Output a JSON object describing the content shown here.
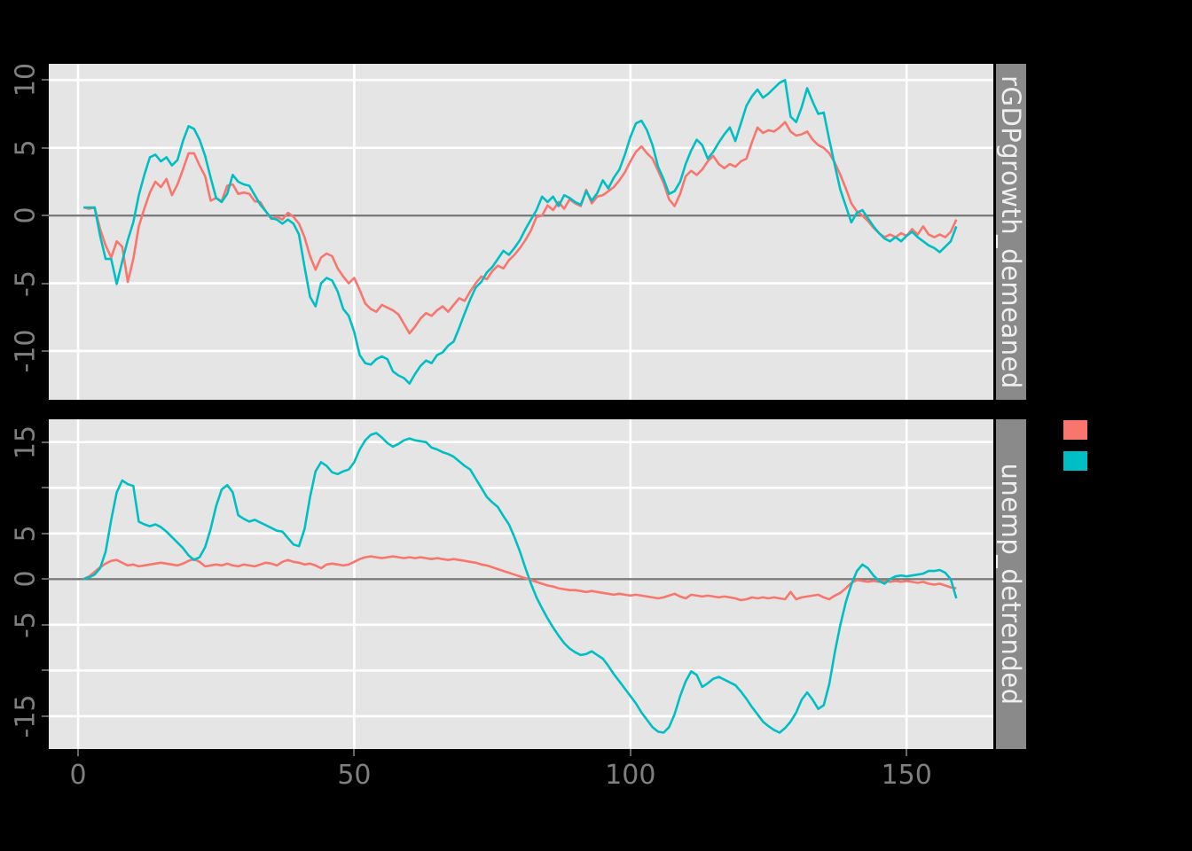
{
  "chart_data": {
    "type": "line",
    "title": "",
    "xlabel": "",
    "ylabel": "",
    "grid": true,
    "legend_position": "right",
    "x": {
      "start": 1,
      "step": 1,
      "count": 159,
      "lim": [
        -5.3,
        165.7
      ],
      "breaks": [
        0,
        50,
        100,
        150
      ],
      "labels": [
        "0",
        "50",
        "100",
        "150"
      ]
    },
    "facets": [
      {
        "strip_label": "rGDPgrowth_demeaned",
        "ylim": [
          -13.6,
          11.2
        ],
        "zero_line": true,
        "y_breaks": [
          {
            "value": 10,
            "label": "10"
          },
          {
            "value": 5,
            "label": "5"
          },
          {
            "value": 0,
            "label": "0"
          },
          {
            "value": -5,
            "label": "-5"
          },
          {
            "value": -10,
            "label": "-10"
          }
        ],
        "series": [
          {
            "name": "series-1-salmon",
            "color": "#F8766D",
            "values": [
              0.6,
              0.5,
              0.6,
              -1.0,
              -2.2,
              -3.1,
              -1.9,
              -2.3,
              -4.9,
              -3.2,
              -0.8,
              0.5,
              1.7,
              2.5,
              2.1,
              2.7,
              1.5,
              2.3,
              3.4,
              4.6,
              4.6,
              3.7,
              2.9,
              1.1,
              1.3,
              1.05,
              2.2,
              2.3,
              1.6,
              1.7,
              1.6,
              1.05,
              1.0,
              0.3,
              -0.25,
              -0.1,
              -0.3,
              0.2,
              -0.1,
              -0.6,
              -1.6,
              -3.0,
              -4.0,
              -3.1,
              -2.8,
              -3.0,
              -3.9,
              -4.5,
              -5.0,
              -4.6,
              -5.5,
              -6.5,
              -6.9,
              -7.1,
              -6.6,
              -6.8,
              -7.0,
              -7.3,
              -8.0,
              -8.7,
              -8.2,
              -7.6,
              -7.2,
              -7.4,
              -7.0,
              -6.7,
              -7.1,
              -6.6,
              -6.1,
              -6.3,
              -5.6,
              -5.0,
              -4.5,
              -4.7,
              -4.1,
              -3.7,
              -3.9,
              -3.3,
              -2.9,
              -2.4,
              -1.8,
              -1.1,
              -0.1,
              0.0,
              0.75,
              0.4,
              1.0,
              0.5,
              1.2,
              0.9,
              0.7,
              1.9,
              0.9,
              1.4,
              1.5,
              1.8,
              2.1,
              2.6,
              3.2,
              4.0,
              4.7,
              5.1,
              4.6,
              4.2,
              3.3,
              2.4,
              1.2,
              0.7,
              1.6,
              2.9,
              3.3,
              3.0,
              3.4,
              4.0,
              4.4,
              3.8,
              3.5,
              3.8,
              3.6,
              4.0,
              4.2,
              5.4,
              6.5,
              6.1,
              6.3,
              6.2,
              6.5,
              6.9,
              6.2,
              5.9,
              6.0,
              6.2,
              5.6,
              5.2,
              5.0,
              4.6,
              3.9,
              3.0,
              2.0,
              0.9,
              0.3,
              0.0,
              -0.4,
              -0.9,
              -1.3,
              -1.6,
              -1.4,
              -1.6,
              -1.3,
              -1.5,
              -1.0,
              -1.4,
              -0.8,
              -1.4,
              -1.6,
              -1.4,
              -1.6,
              -1.2,
              -0.3
            ]
          },
          {
            "name": "series-2-teal",
            "color": "#00BFC4",
            "values": [
              0.6,
              0.6,
              0.6,
              -1.5,
              -3.2,
              -3.2,
              -5.05,
              -3.4,
              -1.8,
              -0.5,
              1.5,
              3.0,
              4.3,
              4.5,
              4.0,
              4.3,
              3.7,
              4.1,
              5.5,
              6.6,
              6.4,
              5.6,
              4.4,
              2.8,
              1.3,
              1.0,
              1.6,
              3.0,
              2.5,
              2.3,
              2.2,
              1.5,
              0.8,
              0.3,
              -0.2,
              -0.3,
              -0.6,
              -0.3,
              -0.6,
              -1.4,
              -3.8,
              -6.0,
              -6.7,
              -5.0,
              -4.6,
              -4.8,
              -5.6,
              -6.9,
              -7.4,
              -8.6,
              -10.3,
              -10.9,
              -11.0,
              -10.6,
              -10.4,
              -10.6,
              -11.5,
              -11.8,
              -12.0,
              -12.4,
              -11.7,
              -11.1,
              -10.7,
              -10.9,
              -10.3,
              -10.1,
              -9.6,
              -9.3,
              -8.3,
              -7.2,
              -6.2,
              -5.3,
              -4.9,
              -4.2,
              -3.8,
              -3.2,
              -2.6,
              -2.9,
              -2.4,
              -1.8,
              -1.0,
              -0.3,
              0.4,
              1.4,
              1.0,
              1.4,
              0.7,
              1.5,
              1.3,
              1.0,
              0.8,
              1.8,
              1.1,
              1.65,
              2.6,
              2.0,
              2.8,
              3.4,
              4.5,
              5.8,
              6.8,
              7.0,
              6.3,
              5.2,
              3.6,
              2.7,
              1.6,
              1.8,
              2.5,
              3.8,
              4.8,
              5.6,
              5.2,
              4.2,
              4.7,
              5.4,
              6.0,
              6.5,
              5.5,
              6.8,
              8.1,
              8.8,
              9.3,
              8.7,
              9.0,
              9.4,
              9.8,
              10.0,
              7.3,
              6.9,
              8.0,
              9.4,
              8.4,
              7.5,
              7.6,
              5.6,
              3.7,
              1.9,
              0.7,
              -0.5,
              0.2,
              0.4,
              -0.2,
              -0.8,
              -1.3,
              -1.7,
              -1.9,
              -1.6,
              -1.9,
              -1.5,
              -1.2,
              -1.6,
              -1.9,
              -2.2,
              -2.4,
              -2.7,
              -2.3,
              -1.9,
              -0.8
            ]
          }
        ]
      },
      {
        "strip_label": "unemp_detrended",
        "ylim": [
          -18.6,
          17.5
        ],
        "zero_line": true,
        "y_breaks": [
          {
            "value": 15,
            "label": "15"
          },
          {
            "value": 10,
            "label": ""
          },
          {
            "value": 5,
            "label": "5"
          },
          {
            "value": 0,
            "label": "0"
          },
          {
            "value": -5,
            "label": "-5"
          },
          {
            "value": -10,
            "label": ""
          },
          {
            "value": -15,
            "label": "-15"
          }
        ],
        "series": [
          {
            "name": "series-1-salmon",
            "color": "#F8766D",
            "values": [
              0.0,
              0.3,
              0.8,
              1.3,
              1.7,
              2.0,
              2.1,
              1.8,
              1.5,
              1.6,
              1.4,
              1.5,
              1.6,
              1.7,
              1.8,
              1.7,
              1.6,
              1.5,
              1.7,
              2.0,
              2.2,
              1.9,
              1.4,
              1.5,
              1.6,
              1.5,
              1.7,
              1.5,
              1.4,
              1.6,
              1.5,
              1.4,
              1.6,
              1.8,
              1.7,
              1.5,
              1.9,
              2.1,
              1.9,
              1.8,
              1.6,
              1.7,
              1.5,
              1.2,
              1.6,
              1.7,
              1.6,
              1.5,
              1.6,
              1.9,
              2.2,
              2.4,
              2.5,
              2.4,
              2.3,
              2.4,
              2.5,
              2.4,
              2.3,
              2.4,
              2.3,
              2.4,
              2.3,
              2.2,
              2.3,
              2.2,
              2.1,
              2.2,
              2.1,
              2.0,
              1.9,
              1.8,
              1.6,
              1.5,
              1.3,
              1.1,
              0.9,
              0.7,
              0.5,
              0.3,
              0.1,
              -0.1,
              -0.3,
              -0.5,
              -0.7,
              -0.8,
              -1.0,
              -1.1,
              -1.2,
              -1.2,
              -1.3,
              -1.4,
              -1.3,
              -1.4,
              -1.5,
              -1.6,
              -1.7,
              -1.6,
              -1.7,
              -1.8,
              -1.7,
              -1.8,
              -1.9,
              -2.0,
              -2.1,
              -2.0,
              -1.8,
              -1.6,
              -1.9,
              -2.1,
              -1.7,
              -1.8,
              -1.9,
              -1.8,
              -1.9,
              -2.0,
              -1.9,
              -2.0,
              -2.1,
              -2.3,
              -2.2,
              -2.0,
              -2.1,
              -2.0,
              -2.1,
              -2.0,
              -2.1,
              -2.2,
              -1.4,
              -2.2,
              -2.0,
              -1.9,
              -1.8,
              -1.7,
              -2.0,
              -2.2,
              -1.8,
              -1.5,
              -1.0,
              -0.4,
              -0.1,
              -0.2,
              -0.3,
              -0.2,
              -0.3,
              -0.2,
              -0.3,
              -0.2,
              -0.3,
              -0.2,
              -0.3,
              -0.4,
              -0.3,
              -0.5,
              -0.6,
              -0.5,
              -0.7,
              -0.9,
              -1.0
            ]
          },
          {
            "name": "series-2-teal",
            "color": "#00BFC4",
            "values": [
              0.0,
              0.2,
              0.5,
              1.2,
              3.0,
              6.5,
              9.5,
              10.8,
              10.4,
              10.2,
              6.3,
              6.0,
              5.8,
              6.0,
              5.7,
              5.2,
              4.6,
              4.0,
              3.4,
              2.6,
              2.1,
              2.4,
              3.5,
              5.5,
              8.0,
              9.8,
              10.3,
              9.5,
              7.0,
              6.6,
              6.3,
              6.5,
              6.2,
              5.9,
              5.6,
              5.3,
              5.2,
              4.5,
              3.8,
              3.6,
              5.5,
              9.0,
              11.8,
              12.8,
              12.4,
              11.7,
              11.5,
              11.8,
              12.0,
              12.8,
              14.2,
              15.2,
              15.8,
              16.0,
              15.5,
              14.9,
              14.5,
              14.8,
              15.2,
              15.4,
              15.2,
              15.1,
              15.0,
              14.4,
              14.2,
              13.9,
              13.7,
              13.4,
              12.9,
              12.4,
              12.0,
              11.0,
              10.0,
              9.0,
              8.4,
              7.9,
              6.9,
              6.0,
              4.6,
              3.0,
              1.2,
              -0.5,
              -2.0,
              -3.2,
              -4.3,
              -5.3,
              -6.2,
              -7.0,
              -7.6,
              -8.0,
              -8.3,
              -8.2,
              -7.9,
              -8.3,
              -8.7,
              -9.5,
              -10.4,
              -11.2,
              -12.0,
              -12.8,
              -13.6,
              -14.6,
              -15.4,
              -16.2,
              -16.7,
              -16.8,
              -16.2,
              -14.8,
              -12.8,
              -11.2,
              -10.1,
              -10.5,
              -11.8,
              -11.4,
              -10.9,
              -10.7,
              -11.0,
              -11.3,
              -11.6,
              -12.3,
              -13.1,
              -14.0,
              -14.8,
              -15.6,
              -16.1,
              -16.5,
              -16.8,
              -16.3,
              -15.6,
              -14.6,
              -13.2,
              -12.4,
              -13.2,
              -14.2,
              -13.8,
              -11.5,
              -8.0,
              -5.0,
              -2.5,
              -0.6,
              0.9,
              1.6,
              1.2,
              0.4,
              -0.2,
              -0.5,
              0.0,
              0.3,
              0.4,
              0.3,
              0.4,
              0.5,
              0.6,
              0.9,
              0.9,
              1.0,
              0.7,
              0.0,
              -2.1
            ]
          }
        ]
      }
    ],
    "legend": {
      "keys": [
        {
          "color": "#F8766D",
          "label": ""
        },
        {
          "color": "#00BFC4",
          "label": ""
        }
      ]
    },
    "style": {
      "background": "#000000",
      "panel_bg": "#E5E5E5",
      "grid_color": "#FFFFFF",
      "zero_line_color": "#7A7A7A",
      "axis_text_color": "#7F7F7F",
      "tick_color": "#666666",
      "strip_bg": "#8A8A8A",
      "strip_text_color": "#EFEFEF"
    }
  }
}
